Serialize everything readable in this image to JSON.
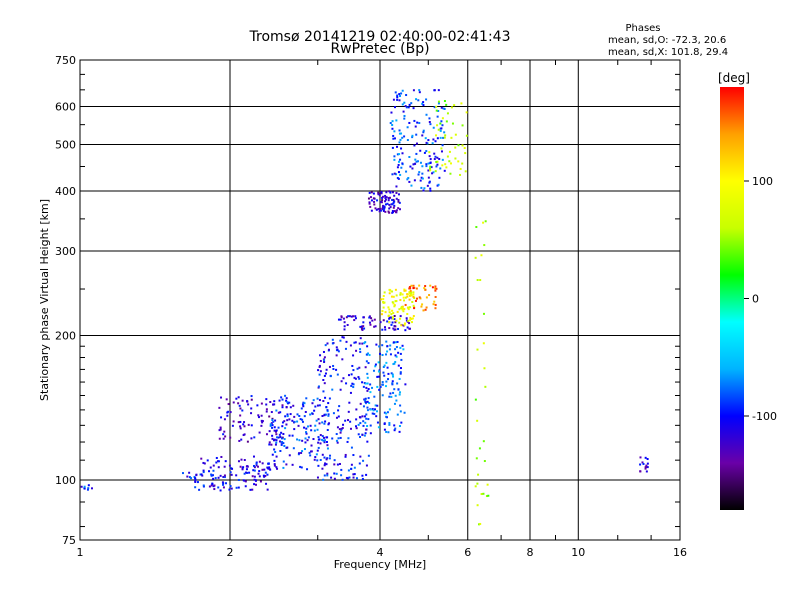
{
  "chart_data": {
    "type": "scatter",
    "title": "Tromsø 20141219 02:40:00-02:41:43",
    "subtitle": "RwPretec (Bp)",
    "xlabel": "Frequency [MHz]",
    "ylabel": "Stationary phase Virtual Height [km]",
    "x_scale": "log",
    "y_scale": "log",
    "xlim": [
      1,
      16
    ],
    "ylim": [
      75,
      750
    ],
    "x_ticks": [
      "1",
      "2",
      "4",
      "6",
      "8",
      "10",
      "16"
    ],
    "y_ticks": [
      "75",
      "100",
      "200",
      "300",
      "400",
      "500",
      "600",
      "750"
    ],
    "grid": true,
    "phase_box": {
      "heading": "Phases",
      "line_o": "mean, sd,O: -72.3, 20.6",
      "line_x": "mean, sd,X: 101.8, 29.4"
    },
    "colorbar": {
      "label": "[deg]",
      "range": [
        -180,
        180
      ],
      "ticks": [
        "100",
        "0",
        "-100"
      ],
      "colors": [
        "#000000",
        "#6a00a8",
        "#0000ff",
        "#00b4ff",
        "#00ffff",
        "#00ff00",
        "#c8ff00",
        "#ffff00",
        "#ffa000",
        "#ff0000"
      ]
    },
    "traces": [
      {
        "name": "",
        "x_range": [
          1.7,
          2.4
        ],
        "y_range": [
          95,
          112
        ],
        "phase": -110,
        "count": 120
      },
      {
        "name": "",
        "x_range": [
          1.9,
          2.6
        ],
        "y_range": [
          118,
          150
        ],
        "phase": -120,
        "count": 100
      },
      {
        "name": "",
        "x_range": [
          2.4,
          3.2
        ],
        "y_range": [
          105,
          150
        ],
        "phase": -95,
        "count": 170
      },
      {
        "name": "",
        "x_range": [
          3.0,
          3.8
        ],
        "y_range": [
          100,
          200
        ],
        "phase": -100,
        "count": 190
      },
      {
        "name": "",
        "x_range": [
          3.7,
          4.5
        ],
        "y_range": [
          125,
          195
        ],
        "phase": -80,
        "count": 150
      },
      {
        "name": "",
        "x_range": [
          3.3,
          4.6
        ],
        "y_range": [
          205,
          220
        ],
        "phase": -120,
        "count": 70
      },
      {
        "name": "",
        "x_range": [
          4.0,
          4.7
        ],
        "y_range": [
          210,
          250
        ],
        "phase": 90,
        "count": 90
      },
      {
        "name": "",
        "x_range": [
          4.5,
          5.2
        ],
        "y_range": [
          225,
          255
        ],
        "phase": 150,
        "count": 40
      },
      {
        "name": "",
        "x_range": [
          3.8,
          4.4
        ],
        "y_range": [
          360,
          400
        ],
        "phase": -120,
        "count": 90
      },
      {
        "name": "",
        "x_range": [
          4.2,
          5.4
        ],
        "y_range": [
          400,
          650
        ],
        "phase": -90,
        "count": 180
      },
      {
        "name": "",
        "x_range": [
          5.0,
          6.0
        ],
        "y_range": [
          430,
          620
        ],
        "phase": 60,
        "count": 50
      },
      {
        "name": "",
        "x_range": [
          1.0,
          1.06
        ],
        "y_range": [
          95,
          98
        ],
        "phase": -90,
        "count": 8
      },
      {
        "name": "",
        "x_range": [
          1.6,
          1.8
        ],
        "y_range": [
          100,
          104
        ],
        "phase": -95,
        "count": 12
      },
      {
        "name": "",
        "x_range": [
          6.2,
          6.6
        ],
        "y_range": [
          80,
          350
        ],
        "phase": 60,
        "count": 30
      },
      {
        "name": "",
        "x_range": [
          13.3,
          13.8
        ],
        "y_range": [
          104,
          112
        ],
        "phase": -120,
        "count": 15
      }
    ]
  }
}
